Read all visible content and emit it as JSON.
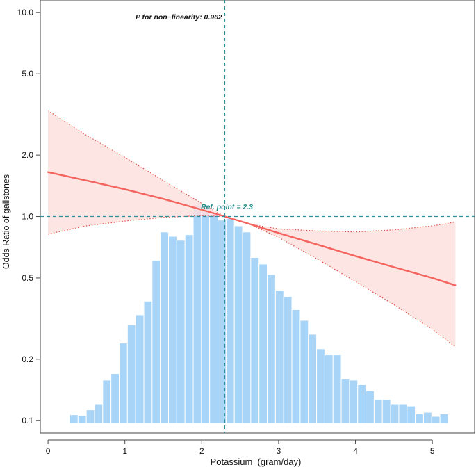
{
  "colors": {
    "histogram": "#a8d4f7",
    "histogram_edge": "#ffffff",
    "curve": "#f4645e",
    "ci_fill": "#fde0de",
    "ci_edge": "#e2524a",
    "reference": "#2f8f9d",
    "ref_label": "#1f8a84",
    "axis": "#444444"
  },
  "chart_data": {
    "type": "restricted-cubic-spline",
    "title": "",
    "xlabel": "Potassium  (gram/day)",
    "ylabel": "Odds Ratio of gallstones",
    "xlim": [
      -0.1,
      5.55
    ],
    "ylim_log": [
      0.087,
      11.5
    ],
    "x_ticks": [
      0,
      1,
      2,
      3,
      4,
      5
    ],
    "x_tick_labels": [
      "0",
      "1",
      "2",
      "3",
      "4",
      "5"
    ],
    "y_ticks": [
      10,
      5,
      2,
      1,
      0.5,
      0.2,
      0.1
    ],
    "y_tick_labels": [
      "10.0",
      "5.0",
      "2.0",
      "1.0",
      "0.5",
      "0.2",
      "0.1"
    ],
    "annotation": "P for non−linearity: 0.962",
    "ref_label": "Ref. point = 2.3",
    "ref_x": 2.3,
    "ref_y": 1.0,
    "curve": {
      "x": [
        0.0,
        0.5,
        1.0,
        1.5,
        2.0,
        2.3,
        2.6,
        3.0,
        3.5,
        4.0,
        4.5,
        5.0,
        5.3
      ],
      "or": [
        1.65,
        1.5,
        1.36,
        1.22,
        1.08,
        1.0,
        0.925,
        0.83,
        0.73,
        0.64,
        0.565,
        0.5,
        0.46
      ]
    },
    "ci_upper": {
      "x": [
        0.0,
        0.5,
        1.0,
        1.5,
        2.0,
        2.3,
        2.6,
        3.0,
        3.5,
        4.0,
        4.5,
        5.0,
        5.3
      ],
      "or": [
        3.3,
        2.5,
        1.95,
        1.5,
        1.16,
        1.0,
        0.92,
        0.87,
        0.85,
        0.84,
        0.86,
        0.9,
        0.94
      ]
    },
    "ci_lower": {
      "x": [
        0.0,
        0.5,
        1.0,
        1.5,
        2.0,
        2.3,
        2.6,
        3.0,
        3.5,
        4.0,
        4.5,
        5.0,
        5.3
      ],
      "or": [
        0.82,
        0.9,
        0.95,
        0.99,
        1.01,
        1.0,
        0.925,
        0.79,
        0.62,
        0.48,
        0.37,
        0.28,
        0.23
      ]
    },
    "histogram": {
      "bin_width": 0.107,
      "bin_starts": [
        0.07,
        0.177,
        0.284,
        0.391,
        0.498,
        0.605,
        0.712,
        0.819,
        0.926,
        1.033,
        1.14,
        1.247,
        1.354,
        1.461,
        1.568,
        1.675,
        1.782,
        1.889,
        1.996,
        2.103,
        2.21,
        2.317,
        2.424,
        2.531,
        2.638,
        2.745,
        2.852,
        2.959,
        3.066,
        3.173,
        3.28,
        3.387,
        3.494,
        3.601,
        3.708,
        3.815,
        3.922,
        4.029,
        4.136,
        4.243,
        4.35,
        4.457,
        4.564,
        4.671,
        4.778,
        4.885,
        4.992,
        5.099
      ],
      "heights": [
        0.093,
        0.096,
        0.107,
        0.106,
        0.113,
        0.12,
        0.158,
        0.17,
        0.24,
        0.295,
        0.33,
        0.385,
        0.61,
        0.84,
        0.8,
        0.765,
        0.815,
        1.14,
        1.14,
        1.03,
        0.96,
        0.98,
        0.9,
        0.84,
        0.63,
        0.585,
        0.52,
        0.435,
        0.405,
        0.35,
        0.31,
        0.265,
        0.225,
        0.21,
        0.21,
        0.16,
        0.158,
        0.15,
        0.14,
        0.127,
        0.127,
        0.12,
        0.12,
        0.118,
        0.108,
        0.11,
        0.105,
        0.108
      ]
    }
  }
}
